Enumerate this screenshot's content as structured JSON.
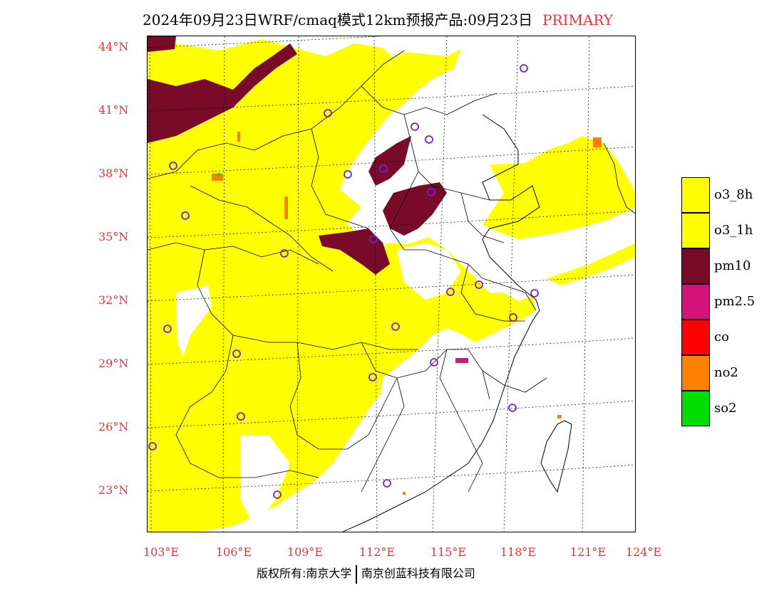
{
  "title": {
    "main": "2024年09月23日WRF/cmaq模式12km预报产品:09月23日",
    "tag": "PRIMARY"
  },
  "axes": {
    "lat_labels": [
      "44°N",
      "41°N",
      "38°N",
      "35°N",
      "32°N",
      "29°N",
      "26°N",
      "23°N"
    ],
    "lon_labels": [
      "103°E",
      "106°E",
      "109°E",
      "112°E",
      "115°E",
      "118°E",
      "121°E",
      "124°E"
    ]
  },
  "legend": [
    {
      "label": "o3_8h",
      "color": "#ffff00"
    },
    {
      "label": "o3_1h",
      "color": "#ffff00"
    },
    {
      "label": "pm10",
      "color": "#7a0a2a"
    },
    {
      "label": "pm2.5",
      "color": "#d4137a"
    },
    {
      "label": "co",
      "color": "#ff0000"
    },
    {
      "label": "no2",
      "color": "#ff8000"
    },
    {
      "label": "so2",
      "color": "#00dd00"
    }
  ],
  "footer": {
    "left": "版权所有:南京大学",
    "right": "南京创蓝科技有限公司"
  },
  "colors": {
    "accent_red": "#e8333a",
    "station_marker": "#7a22cc"
  }
}
